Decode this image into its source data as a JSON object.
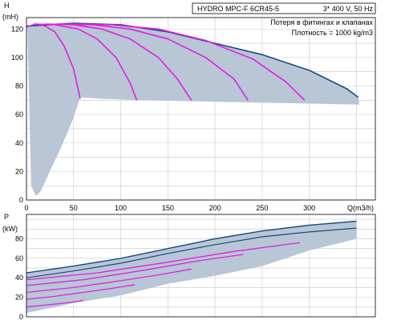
{
  "chart_data": [
    {
      "type": "line",
      "ylabel": "H",
      "ylabel_unit": "(mH)",
      "xlabel": "Q(m3/h)",
      "xlim": [
        0,
        370
      ],
      "ylim": [
        0,
        128
      ],
      "xticks": [
        "0",
        "50",
        "100",
        "150",
        "200",
        "250",
        "300"
      ],
      "yticks": [
        "0",
        "20",
        "40",
        "60",
        "80",
        "100",
        "120"
      ],
      "grid": true,
      "info": {
        "title_left": "HYDRO MPC-F 6CR45-5",
        "title_right": "3* 400 V, 50 Hz",
        "line1": "Потеря в фитингах и клапанах",
        "line2": "Плотность = 1000 kg/m3"
      },
      "colors": {
        "pump_curve": "#e020e0",
        "envelope": "#1a4a80",
        "band_fill": "#b8c6d6"
      },
      "envelope": {
        "x": [
          0,
          50,
          100,
          150,
          200,
          250,
          300,
          340,
          352
        ],
        "y": [
          122,
          124,
          123,
          118,
          110,
          102,
          91,
          78,
          72
        ]
      },
      "band_lower": {
        "x": [
          353,
          120,
          80,
          60
        ],
        "y": [
          67,
          70,
          71,
          72
        ]
      },
      "left_fill_boundary": {
        "x": [
          57,
          50,
          42,
          34,
          26,
          20,
          15,
          10,
          5,
          1
        ],
        "y": [
          72,
          58,
          45,
          33,
          22,
          13,
          6,
          3,
          10,
          120
        ]
      },
      "series": [
        {
          "x": [
            0,
            10,
            20,
            30,
            40,
            50,
            57
          ],
          "y": [
            121.5,
            123.5,
            122,
            118,
            108,
            92,
            71
          ]
        },
        {
          "x": [
            8,
            30,
            55,
            75,
            95,
            110,
            117
          ],
          "y": [
            123.5,
            123,
            120,
            113,
            100,
            82,
            70
          ]
        },
        {
          "x": [
            20,
            50,
            80,
            110,
            140,
            160,
            175
          ],
          "y": [
            123.5,
            123,
            120,
            113,
            100,
            85,
            70
          ]
        },
        {
          "x": [
            32,
            70,
            110,
            150,
            190,
            220,
            235
          ],
          "y": [
            123.5,
            123,
            120,
            113,
            100,
            85,
            70
          ]
        },
        {
          "x": [
            45,
            90,
            140,
            190,
            240,
            275,
            295
          ],
          "y": [
            123.5,
            123,
            120,
            112,
            99,
            83,
            70
          ]
        }
      ]
    },
    {
      "type": "line",
      "ylabel": "P",
      "ylabel_unit": "(kW)",
      "xlim": [
        0,
        370
      ],
      "ylim": [
        0,
        105
      ],
      "yticks": [
        "0",
        "20",
        "40",
        "60",
        "80"
      ],
      "grid": true,
      "colors": {
        "power_curve": "#e020e0",
        "envelope": "#1a4a80",
        "band_fill": "#b8c6d6"
      },
      "envelope_upper": {
        "x": [
          0,
          50,
          100,
          150,
          200,
          250,
          300,
          350
        ],
        "y": [
          45,
          52,
          60,
          70,
          80,
          88,
          94,
          98
        ]
      },
      "envelope_lower": {
        "x": [
          0,
          50,
          100,
          150,
          200,
          250,
          300,
          350
        ],
        "y": [
          40,
          47,
          55,
          65,
          74,
          82,
          87,
          91
        ]
      },
      "band_bottom": {
        "x": [
          350,
          300,
          250,
          200,
          150,
          100,
          50,
          0
        ],
        "y": [
          80,
          68,
          52,
          42,
          34,
          22,
          14,
          4
        ]
      },
      "series": [
        {
          "x": [
            0,
            20,
            40,
            55,
            60
          ],
          "y": [
            10,
            12,
            14,
            16,
            17
          ]
        },
        {
          "x": [
            0,
            30,
            60,
            90,
            115
          ],
          "y": [
            18,
            21,
            25,
            29,
            33
          ]
        },
        {
          "x": [
            0,
            50,
            100,
            140,
            175
          ],
          "y": [
            25,
            30,
            37,
            43,
            49
          ]
        },
        {
          "x": [
            0,
            60,
            120,
            180,
            230
          ],
          "y": [
            32,
            38,
            47,
            57,
            64
          ]
        },
        {
          "x": [
            0,
            75,
            150,
            220,
            290
          ],
          "y": [
            38,
            45,
            56,
            67,
            76
          ]
        }
      ]
    }
  ]
}
